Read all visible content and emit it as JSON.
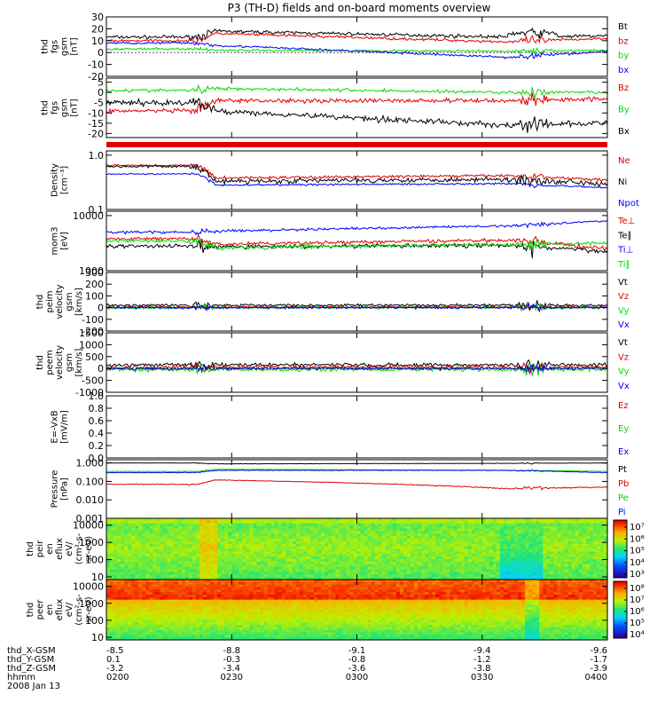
{
  "title": "P3 (TH-D) fields and on-board moments overview",
  "colors": {
    "black": "#000000",
    "red": "#e00000",
    "green": "#00dd00",
    "blue": "#0000ff"
  },
  "chart_data": [
    {
      "type": "line",
      "id": "p1",
      "ylabel_lines": [
        "thd",
        "fgs",
        "gsm",
        "[nT]"
      ],
      "ylim": [
        -20,
        30
      ],
      "yticks": [
        "30",
        "20",
        "10",
        "0",
        "-10",
        "-20"
      ],
      "ytick_values": [
        30,
        20,
        10,
        0,
        -10,
        -20
      ],
      "grid": false,
      "legend": [
        {
          "label": "Bt",
          "color": "black"
        },
        {
          "label": "bz",
          "color": "red"
        },
        {
          "label": "by",
          "color": "green"
        },
        {
          "label": "bx",
          "color": "blue"
        }
      ]
    },
    {
      "type": "line",
      "id": "p2",
      "ylabel_lines": [
        "thd",
        "fgs",
        "gsm",
        "[nT]"
      ],
      "ylim": [
        -22,
        7
      ],
      "yticks": [
        "5",
        "0",
        "-5",
        "-10",
        "-15",
        "-20"
      ],
      "ytick_values": [
        5,
        0,
        -5,
        -10,
        -15,
        -20
      ],
      "grid": false,
      "legend": [
        {
          "label": "Bz",
          "color": "red"
        },
        {
          "label": "By",
          "color": "green"
        },
        {
          "label": "Bx",
          "color": "black"
        }
      ]
    },
    {
      "type": "line",
      "id": "p3",
      "ylabel_lines": [
        "Density",
        "[cm⁻³]"
      ],
      "scale": "log",
      "ylim": [
        0.1,
        1.2
      ],
      "yticks": [
        "1.0",
        "0.1"
      ],
      "ytick_values": [
        1.0,
        0.1
      ],
      "grid": false,
      "legend": [
        {
          "label": "Ne",
          "color": "red"
        },
        {
          "label": "Ni",
          "color": "black"
        },
        {
          "label": "Npot",
          "color": "blue"
        }
      ]
    },
    {
      "type": "line",
      "id": "p4",
      "ylabel_lines": [
        "mom3",
        "[eV]"
      ],
      "scale": "log",
      "ylim": [
        1000,
        12000
      ],
      "yticks": [
        "10000",
        "1000"
      ],
      "ytick_values": [
        10000,
        1000
      ],
      "grid": false,
      "legend": [
        {
          "label": "Te⊥",
          "color": "red"
        },
        {
          "label": "Te∥",
          "color": "black"
        },
        {
          "label": "Ti⊥",
          "color": "blue"
        },
        {
          "label": "Ti∥",
          "color": "green"
        }
      ]
    },
    {
      "type": "line",
      "id": "p5",
      "ylabel_lines": [
        "thd",
        "peim",
        "velocity",
        "gsm",
        "[km/s]"
      ],
      "ylim": [
        -200,
        300
      ],
      "yticks": [
        "300",
        "200",
        "100",
        "0",
        "-100",
        "-200"
      ],
      "ytick_values": [
        300,
        200,
        100,
        0,
        -100,
        -200
      ],
      "grid": false,
      "legend": [
        {
          "label": "Vt",
          "color": "black"
        },
        {
          "label": "Vz",
          "color": "red"
        },
        {
          "label": "Vy",
          "color": "green"
        },
        {
          "label": "Vx",
          "color": "blue"
        }
      ]
    },
    {
      "type": "line",
      "id": "p6",
      "ylabel_lines": [
        "thd",
        "peem",
        "velocity",
        "gsm",
        "[km/s]"
      ],
      "ylim": [
        -1000,
        1500
      ],
      "yticks": [
        "1500",
        "1000",
        "500",
        "0",
        "-500",
        "-1000"
      ],
      "ytick_values": [
        1500,
        1000,
        500,
        0,
        -500,
        -1000
      ],
      "grid": false,
      "legend": [
        {
          "label": "Vt",
          "color": "black"
        },
        {
          "label": "Vz",
          "color": "red"
        },
        {
          "label": "Vy",
          "color": "green"
        },
        {
          "label": "Vx",
          "color": "blue"
        }
      ]
    },
    {
      "type": "line",
      "id": "p7",
      "ylabel_lines": [
        "E=-VxB",
        "[mV/m]"
      ],
      "ylim": [
        0,
        1
      ],
      "yticks": [
        "1.0",
        "0.8",
        "0.6",
        "0.4",
        "0.2",
        "0.0"
      ],
      "ytick_values": [
        1.0,
        0.8,
        0.6,
        0.4,
        0.2,
        0.0
      ],
      "grid": false,
      "legend": [
        {
          "label": "Ez",
          "color": "red"
        },
        {
          "label": "Ey",
          "color": "green"
        },
        {
          "label": "Ex",
          "color": "blue"
        }
      ]
    },
    {
      "type": "line",
      "id": "p8",
      "ylabel_lines": [
        "Pressure",
        "[nPa]"
      ],
      "scale": "log",
      "ylim": [
        0.001,
        1.5
      ],
      "yticks": [
        "1.000",
        "0.100",
        "0.010",
        "0.001"
      ],
      "ytick_values": [
        1.0,
        0.1,
        0.01,
        0.001
      ],
      "grid": false,
      "legend": [
        {
          "label": "Pt",
          "color": "black"
        },
        {
          "label": "Pb",
          "color": "red"
        },
        {
          "label": "Pe",
          "color": "green"
        },
        {
          "label": "Pi",
          "color": "blue"
        }
      ]
    },
    {
      "type": "heatmap",
      "id": "p9",
      "ylabel_lines": [
        "thd",
        "peir",
        "en",
        "eflux",
        "eV/",
        "(cm²-s-",
        "sr-eV)"
      ],
      "scale": "log",
      "ylim": [
        7,
        25000
      ],
      "yticks": [
        "10000",
        "1000",
        "100",
        "10"
      ],
      "ytick_values": [
        10000,
        1000,
        100,
        10
      ],
      "colorbar": {
        "labels": [
          "10⁷",
          "10⁶",
          "10⁵",
          "10⁴",
          "10³"
        ]
      }
    },
    {
      "type": "heatmap",
      "id": "p10",
      "ylabel_lines": [
        "thd",
        "peer",
        "en",
        "eflux",
        "eV/",
        "(cm²-s-",
        "sr-eV)"
      ],
      "scale": "log",
      "ylim": [
        7,
        25000
      ],
      "yticks": [
        "10000",
        "1000",
        "100",
        "10"
      ],
      "ytick_values": [
        10000,
        1000,
        100,
        10
      ],
      "colorbar": {
        "labels": [
          "10⁸",
          "10⁷",
          "10⁶",
          "10⁵",
          "10⁴"
        ]
      }
    }
  ],
  "xaxis": {
    "rows": [
      {
        "label": "thd_X-GSM",
        "values": [
          "-8.5",
          "-8.8",
          "-9.1",
          "-9.4",
          "-9.6"
        ]
      },
      {
        "label": "thd_Y-GSM",
        "values": [
          "0.1",
          "-0.3",
          "-0.8",
          "-1.2",
          "-1.7"
        ]
      },
      {
        "label": "thd_Z-GSM",
        "values": [
          "-3.2",
          "-3.4",
          "-3.6",
          "-3.8",
          "-3.9"
        ]
      },
      {
        "label": "hhmm",
        "values": [
          "0200",
          "0230",
          "0300",
          "0330",
          "0400"
        ]
      }
    ],
    "date": "2008 Jan 13"
  }
}
